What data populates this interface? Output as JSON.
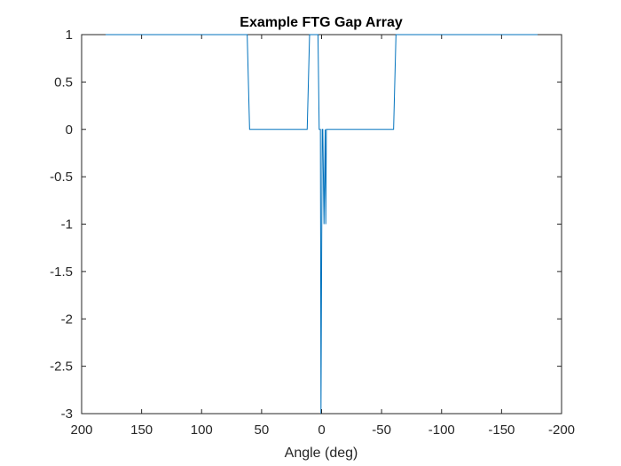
{
  "chart_data": {
    "type": "line",
    "title": "Example FTG Gap Array",
    "xlabel": "Angle (deg)",
    "ylabel": "",
    "xlim": [
      200,
      -200
    ],
    "ylim": [
      -3,
      1
    ],
    "x_reversed": true,
    "grid": false,
    "xticks": [
      200,
      150,
      100,
      50,
      0,
      -50,
      -100,
      -150,
      -200
    ],
    "xtick_labels": [
      "200",
      "150",
      "100",
      "50",
      "0",
      "-50",
      "-100",
      "-150",
      "-200"
    ],
    "yticks": [
      1,
      0.5,
      0,
      -0.5,
      -1,
      -1.5,
      -2,
      -2.5,
      -3
    ],
    "ytick_labels": [
      "1",
      "0.5",
      "0",
      "-0.5",
      "-1",
      "-1.5",
      "-2",
      "-2.5",
      "-3"
    ],
    "series": [
      {
        "color": "#0072BD",
        "x": [
          180,
          62,
          60,
          12,
          10,
          3,
          2,
          1,
          0.5,
          -0.5,
          -1,
          -2,
          -3,
          -3.5,
          -4,
          -5,
          -60,
          -62,
          -180
        ],
        "y": [
          1,
          1,
          0,
          0,
          1,
          1,
          0,
          0,
          -3,
          0,
          0,
          -1,
          0,
          -1,
          0,
          0,
          0,
          1,
          1
        ]
      }
    ]
  }
}
